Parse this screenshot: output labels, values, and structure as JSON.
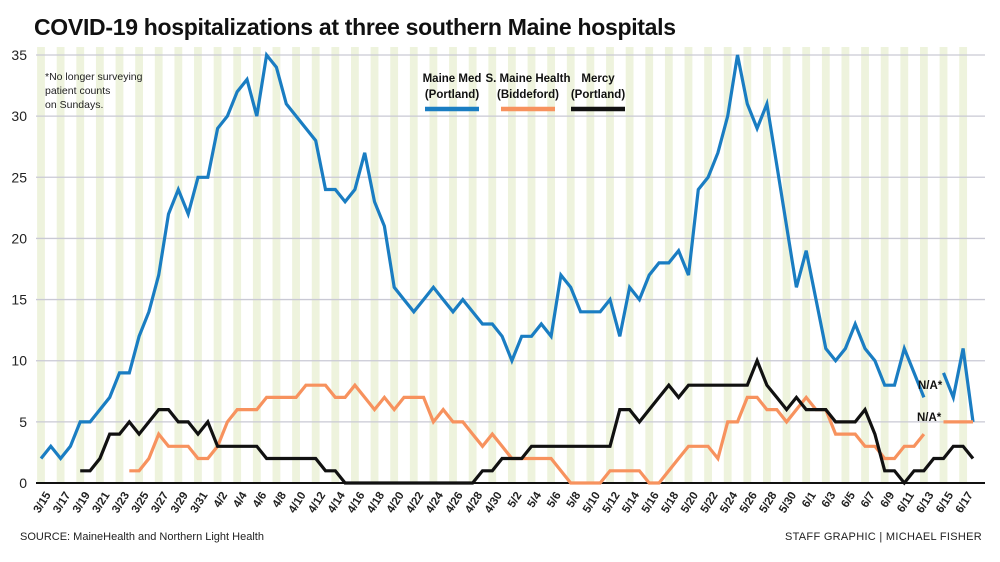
{
  "chart_data": {
    "type": "line",
    "title": "COVID-19 hospitalizations at three southern Maine hospitals",
    "xlabel": "",
    "ylabel": "",
    "ylim": [
      0,
      35
    ],
    "yticks": [
      "0",
      "5",
      "10",
      "15",
      "20",
      "25",
      "30",
      "35"
    ],
    "grid": true,
    "legend_position": "top-center",
    "footnote": "*No longer surveying patient counts on Sundays.",
    "na_label": "N/A*",
    "x": [
      "3/15",
      "3/16",
      "3/17",
      "3/18",
      "3/19",
      "3/20",
      "3/21",
      "3/22",
      "3/23",
      "3/24",
      "3/25",
      "3/26",
      "3/27",
      "3/28",
      "3/29",
      "3/30",
      "3/31",
      "4/1",
      "4/2",
      "4/3",
      "4/4",
      "4/5",
      "4/6",
      "4/7",
      "4/8",
      "4/9",
      "4/10",
      "4/11",
      "4/12",
      "4/13",
      "4/14",
      "4/15",
      "4/16",
      "4/17",
      "4/18",
      "4/19",
      "4/20",
      "4/21",
      "4/22",
      "4/23",
      "4/24",
      "4/25",
      "4/26",
      "4/27",
      "4/28",
      "4/29",
      "4/30",
      "5/1",
      "5/2",
      "5/3",
      "5/4",
      "5/5",
      "5/6",
      "5/7",
      "5/8",
      "5/9",
      "5/10",
      "5/11",
      "5/12",
      "5/13",
      "5/14",
      "5/15",
      "5/16",
      "5/17",
      "5/18",
      "5/19",
      "5/20",
      "5/21",
      "5/22",
      "5/23",
      "5/24",
      "5/25",
      "5/26",
      "5/27",
      "5/28",
      "5/29",
      "5/30",
      "5/31",
      "6/1",
      "6/2",
      "6/3",
      "6/4",
      "6/5",
      "6/6",
      "6/7",
      "6/8",
      "6/9",
      "6/10",
      "6/11",
      "6/12",
      "6/13",
      "6/14",
      "6/15",
      "6/16",
      "6/17",
      "6/18"
    ],
    "series": [
      {
        "name": "Maine Med",
        "sub": "(Portland)",
        "color": "#1a7dc2",
        "values": [
          2,
          3,
          2,
          3,
          5,
          5,
          6,
          7,
          9,
          9,
          12,
          14,
          17,
          22,
          24,
          22,
          25,
          25,
          29,
          30,
          32,
          33,
          30,
          35,
          34,
          31,
          30,
          29,
          28,
          24,
          24,
          23,
          24,
          27,
          23,
          21,
          16,
          15,
          14,
          15,
          16,
          15,
          14,
          15,
          14,
          13,
          13,
          12,
          10,
          12,
          12,
          13,
          12,
          17,
          16,
          14,
          14,
          14,
          15,
          12,
          16,
          15,
          17,
          18,
          18,
          19,
          17,
          24,
          25,
          27,
          30,
          35,
          31,
          29,
          31,
          26,
          21,
          16,
          19,
          15,
          11,
          10,
          11,
          13,
          11,
          10,
          8,
          8,
          11,
          9,
          7,
          null,
          9,
          7,
          11,
          5
        ]
      },
      {
        "name": "S. Maine Health",
        "sub": "(Biddeford)",
        "color": "#f7925e",
        "values": [
          null,
          null,
          null,
          null,
          null,
          null,
          null,
          null,
          null,
          1,
          1,
          2,
          4,
          3,
          3,
          3,
          2,
          2,
          3,
          5,
          6,
          6,
          6,
          7,
          7,
          7,
          7,
          8,
          8,
          8,
          7,
          7,
          8,
          7,
          6,
          7,
          6,
          7,
          7,
          7,
          5,
          6,
          5,
          5,
          4,
          3,
          4,
          3,
          2,
          2,
          2,
          2,
          2,
          1,
          0,
          0,
          0,
          0,
          1,
          1,
          1,
          1,
          0,
          0,
          1,
          2,
          3,
          3,
          3,
          2,
          5,
          5,
          7,
          7,
          6,
          6,
          5,
          6,
          7,
          6,
          6,
          4,
          4,
          4,
          3,
          3,
          2,
          2,
          3,
          3,
          4,
          null,
          5,
          5,
          5,
          5
        ]
      },
      {
        "name": "Mercy",
        "sub": "(Portland)",
        "color": "#111111",
        "values": [
          null,
          null,
          null,
          null,
          1,
          1,
          2,
          4,
          4,
          5,
          4,
          5,
          6,
          6,
          5,
          5,
          4,
          5,
          3,
          3,
          3,
          3,
          3,
          2,
          2,
          2,
          2,
          2,
          2,
          1,
          1,
          0,
          0,
          0,
          0,
          0,
          0,
          0,
          0,
          0,
          0,
          0,
          0,
          0,
          0,
          1,
          1,
          2,
          2,
          2,
          3,
          3,
          3,
          3,
          3,
          3,
          3,
          3,
          3,
          6,
          6,
          5,
          6,
          7,
          8,
          7,
          8,
          8,
          8,
          8,
          8,
          8,
          8,
          10,
          8,
          7,
          6,
          7,
          6,
          6,
          6,
          5,
          5,
          5,
          6,
          4,
          1,
          1,
          0,
          1,
          1,
          2,
          2,
          3,
          3,
          2
        ]
      }
    ]
  },
  "footer": {
    "source": "SOURCE: MaineHealth and Northern Light Health",
    "credit": "STAFF GRAPHIC | MICHAEL FISHER"
  },
  "colors": {
    "stripe": "#eef3dd",
    "grid": "#c9c9d4",
    "axis": "#111111"
  }
}
